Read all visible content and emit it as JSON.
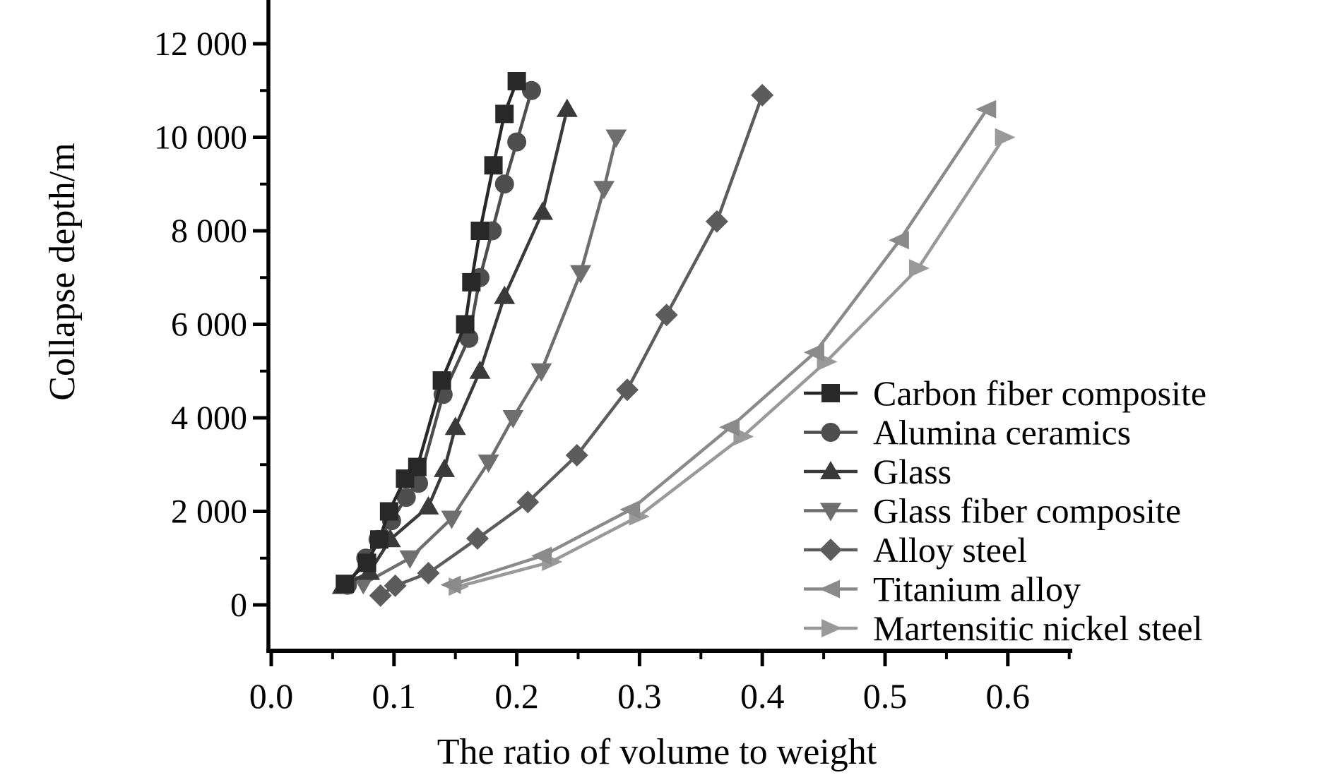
{
  "figure": {
    "x_axis": {
      "title": "The ratio of volume to weight",
      "tick_labels": [
        "0.0",
        "0.1",
        "0.2",
        "0.3",
        "0.4",
        "0.5",
        "0.6"
      ],
      "tick_values": [
        0.0,
        0.1,
        0.2,
        0.3,
        0.4,
        0.5,
        0.6
      ],
      "minor_tick_values": [
        0.05,
        0.15,
        0.25,
        0.35,
        0.45,
        0.55,
        0.65
      ]
    },
    "y_axis": {
      "title": "Collapse depth/m",
      "tick_labels": [
        "0",
        "2 000",
        "4 000",
        "6 000",
        "8 000",
        "10 000",
        "12 000"
      ],
      "tick_values": [
        0,
        2000,
        4000,
        6000,
        8000,
        10000,
        12000
      ],
      "minor_tick_values": [
        1000,
        3000,
        5000,
        7000,
        9000,
        11000
      ]
    },
    "text_color": "#000000",
    "axis_color": "#000000",
    "background_color": "#ffffff"
  },
  "chart_data": {
    "type": "line",
    "title": "",
    "xlabel": "The ratio of volume to weight",
    "ylabel": "Collapse depth/m",
    "xlim": [
      0.0,
      0.65
    ],
    "ylim": [
      0,
      13000
    ],
    "grid": false,
    "legend_position": "lower right",
    "series": [
      {
        "name": "Carbon fiber composite",
        "marker": "square",
        "color": "#282828",
        "points": [
          [
            0.06,
            450
          ],
          [
            0.078,
            900
          ],
          [
            0.088,
            1400
          ],
          [
            0.096,
            2000
          ],
          [
            0.109,
            2700
          ],
          [
            0.119,
            2950
          ],
          [
            0.139,
            4800
          ],
          [
            0.158,
            6000
          ],
          [
            0.163,
            6900
          ],
          [
            0.17,
            8000
          ],
          [
            0.181,
            9400
          ],
          [
            0.19,
            10500
          ],
          [
            0.2,
            11200
          ]
        ]
      },
      {
        "name": "Alumina ceramics",
        "marker": "circle",
        "color": "#4e4e4e",
        "points": [
          [
            0.062,
            420
          ],
          [
            0.077,
            1000
          ],
          [
            0.087,
            1400
          ],
          [
            0.098,
            1800
          ],
          [
            0.11,
            2300
          ],
          [
            0.12,
            2600
          ],
          [
            0.14,
            4500
          ],
          [
            0.161,
            5700
          ],
          [
            0.17,
            7000
          ],
          [
            0.18,
            8000
          ],
          [
            0.19,
            9000
          ],
          [
            0.2,
            9900
          ],
          [
            0.212,
            11000
          ]
        ]
      },
      {
        "name": "Glass",
        "marker": "triangle-up",
        "color": "#3a3a3a",
        "points": [
          [
            0.058,
            400
          ],
          [
            0.08,
            700
          ],
          [
            0.097,
            1400
          ],
          [
            0.128,
            2100
          ],
          [
            0.141,
            2900
          ],
          [
            0.15,
            3800
          ],
          [
            0.17,
            5000
          ],
          [
            0.19,
            6600
          ],
          [
            0.221,
            8400
          ],
          [
            0.241,
            10600
          ]
        ]
      },
      {
        "name": "Glass fiber composite",
        "marker": "triangle-down",
        "color": "#6e6e6e",
        "points": [
          [
            0.075,
            450
          ],
          [
            0.113,
            1000
          ],
          [
            0.147,
            1850
          ],
          [
            0.177,
            3050
          ],
          [
            0.197,
            4000
          ],
          [
            0.22,
            5000
          ],
          [
            0.252,
            7100
          ],
          [
            0.271,
            8900
          ],
          [
            0.281,
            10000
          ]
        ]
      },
      {
        "name": "Alloy steel",
        "marker": "diamond",
        "color": "#5c5c5c",
        "points": [
          [
            0.089,
            200
          ],
          [
            0.101,
            410
          ],
          [
            0.128,
            680
          ],
          [
            0.168,
            1420
          ],
          [
            0.209,
            2200
          ],
          [
            0.249,
            3200
          ],
          [
            0.29,
            4600
          ],
          [
            0.322,
            6200
          ],
          [
            0.363,
            8200
          ],
          [
            0.4,
            10900
          ]
        ]
      },
      {
        "name": "Titanium alloy",
        "marker": "triangle-left",
        "color": "#8a8a8a",
        "points": [
          [
            0.147,
            430
          ],
          [
            0.221,
            1050
          ],
          [
            0.293,
            2040
          ],
          [
            0.374,
            3800
          ],
          [
            0.443,
            5400
          ],
          [
            0.512,
            7800
          ],
          [
            0.583,
            10600
          ]
        ]
      },
      {
        "name": "Martensitic nickel steel",
        "marker": "triangle-right",
        "color": "#999999",
        "points": [
          [
            0.152,
            390
          ],
          [
            0.228,
            920
          ],
          [
            0.299,
            1890
          ],
          [
            0.384,
            3600
          ],
          [
            0.452,
            5200
          ],
          [
            0.527,
            7200
          ],
          [
            0.597,
            10000
          ]
        ]
      }
    ]
  }
}
